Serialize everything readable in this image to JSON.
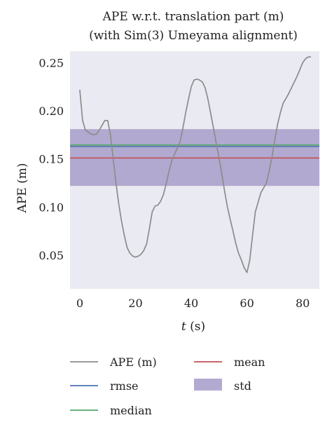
{
  "chart_data": {
    "type": "line",
    "title": "APE w.r.t. translation part (m)",
    "subtitle": "(with Sim(3) Umeyama alignment)",
    "xlabel_var": "t",
    "xlabel_unit": " (s)",
    "ylabel": "APE (m)",
    "xlim": [
      -3.5,
      86
    ],
    "ylim": [
      0.015,
      0.262
    ],
    "xticks": [
      0,
      20,
      40,
      60,
      80
    ],
    "yticks": [
      0.05,
      0.1,
      0.15,
      0.2,
      0.25
    ],
    "ytick_labels": [
      "0.05",
      "0.10",
      "0.15",
      "0.20",
      "0.25"
    ],
    "grid": false,
    "background": "#eaeaf2",
    "legend_position": "below",
    "series": [
      {
        "name": "APE (m)",
        "color": "#8c8c8c",
        "x": [
          0,
          1,
          2,
          3,
          4,
          5,
          6,
          7,
          8,
          9,
          10,
          11,
          12,
          13,
          14,
          15,
          16,
          17,
          18,
          19,
          20,
          21,
          22,
          23,
          24,
          25,
          26,
          27,
          28,
          29,
          30,
          31,
          32,
          33,
          34,
          35,
          36,
          37,
          38,
          39,
          40,
          41,
          42,
          43,
          44,
          45,
          46,
          47,
          48,
          49,
          50,
          51,
          52,
          53,
          54,
          55,
          56,
          57,
          58,
          59,
          60,
          61,
          62,
          63,
          64,
          65,
          66,
          67,
          68,
          69,
          70,
          71,
          72,
          73,
          74,
          75,
          76,
          77,
          78,
          79,
          80,
          81,
          82,
          83
        ],
        "y": [
          0.222,
          0.19,
          0.18,
          0.178,
          0.176,
          0.175,
          0.176,
          0.18,
          0.185,
          0.19,
          0.19,
          0.175,
          0.15,
          0.125,
          0.103,
          0.085,
          0.07,
          0.058,
          0.052,
          0.049,
          0.048,
          0.049,
          0.051,
          0.055,
          0.062,
          0.078,
          0.095,
          0.101,
          0.102,
          0.106,
          0.113,
          0.124,
          0.137,
          0.148,
          0.155,
          0.161,
          0.168,
          0.182,
          0.198,
          0.212,
          0.225,
          0.232,
          0.233,
          0.232,
          0.23,
          0.224,
          0.212,
          0.197,
          0.182,
          0.166,
          0.151,
          0.134,
          0.116,
          0.1,
          0.087,
          0.075,
          0.062,
          0.052,
          0.045,
          0.037,
          0.032,
          0.045,
          0.07,
          0.095,
          0.105,
          0.115,
          0.12,
          0.125,
          0.138,
          0.152,
          0.17,
          0.186,
          0.198,
          0.208,
          0.213,
          0.218,
          0.224,
          0.23,
          0.236,
          0.243,
          0.25,
          0.254,
          0.256,
          0.256
        ]
      },
      {
        "name": "rmse",
        "color": "#4c72b0",
        "value": 0.163
      },
      {
        "name": "median",
        "color": "#55a868",
        "value": 0.1645
      },
      {
        "name": "mean",
        "color": "#c44e52",
        "value": 0.151
      },
      {
        "name": "std",
        "color": "#8172b2",
        "band": [
          0.122,
          0.181
        ]
      }
    ]
  }
}
